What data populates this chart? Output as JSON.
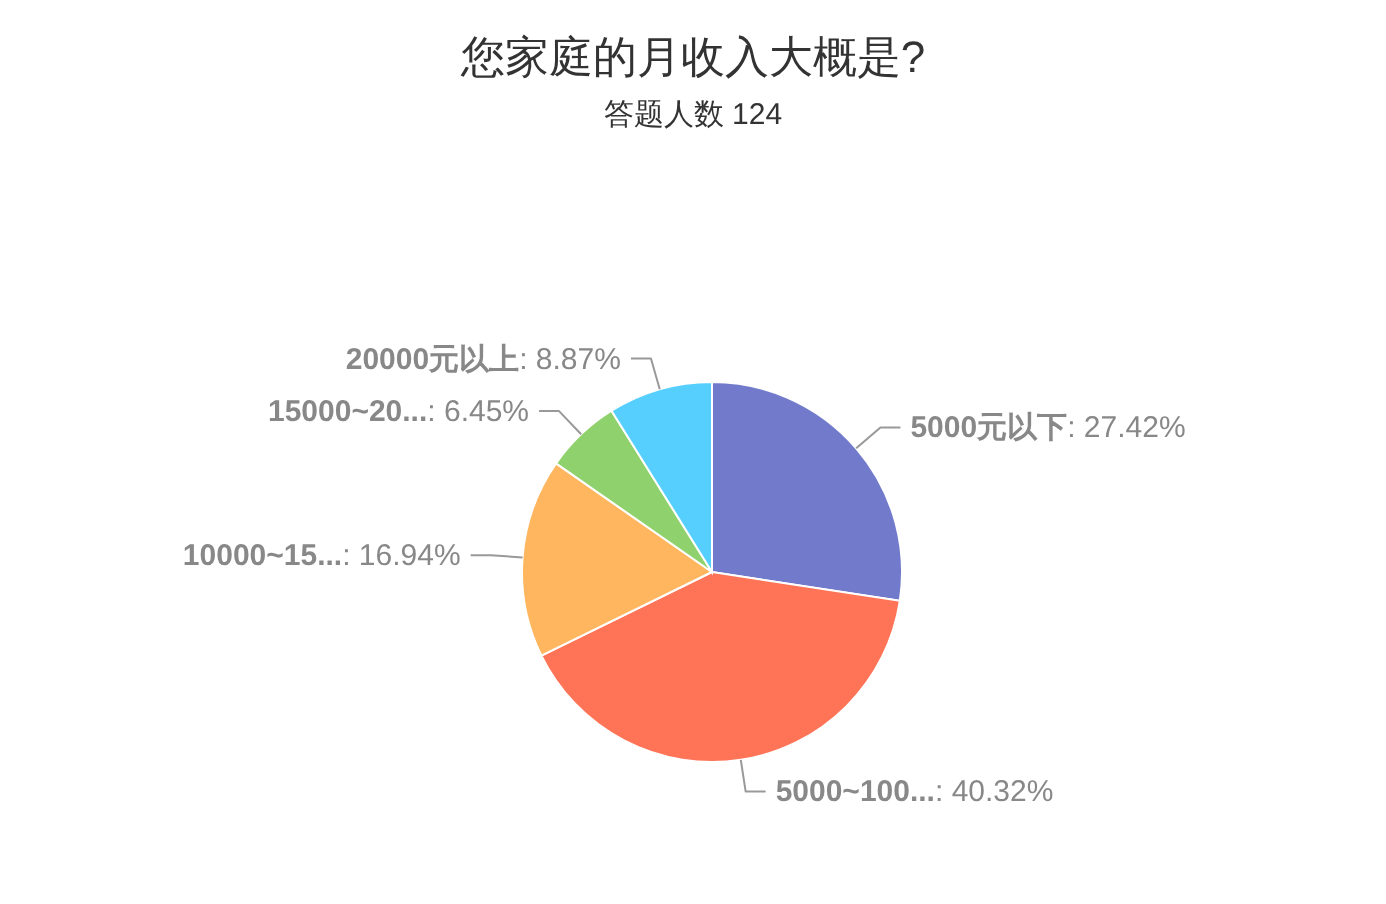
{
  "chart_data": {
    "type": "pie",
    "title": "您家庭的月收入大概是?",
    "subtitle": "答题人数 124",
    "categories": [
      "5000元以下",
      "5000~100...",
      "10000~15...",
      "15000~20...",
      "20000元以上"
    ],
    "values": [
      27.42,
      40.32,
      16.94,
      6.45,
      8.87
    ],
    "value_labels": [
      ": 27.42%",
      ": 40.32%",
      ": 16.94%",
      ": 6.45%",
      ": 8.87%"
    ],
    "colors": [
      "#717acb",
      "#ff7357",
      "#ffb65f",
      "#8fd16c",
      "#56cfff"
    ]
  }
}
